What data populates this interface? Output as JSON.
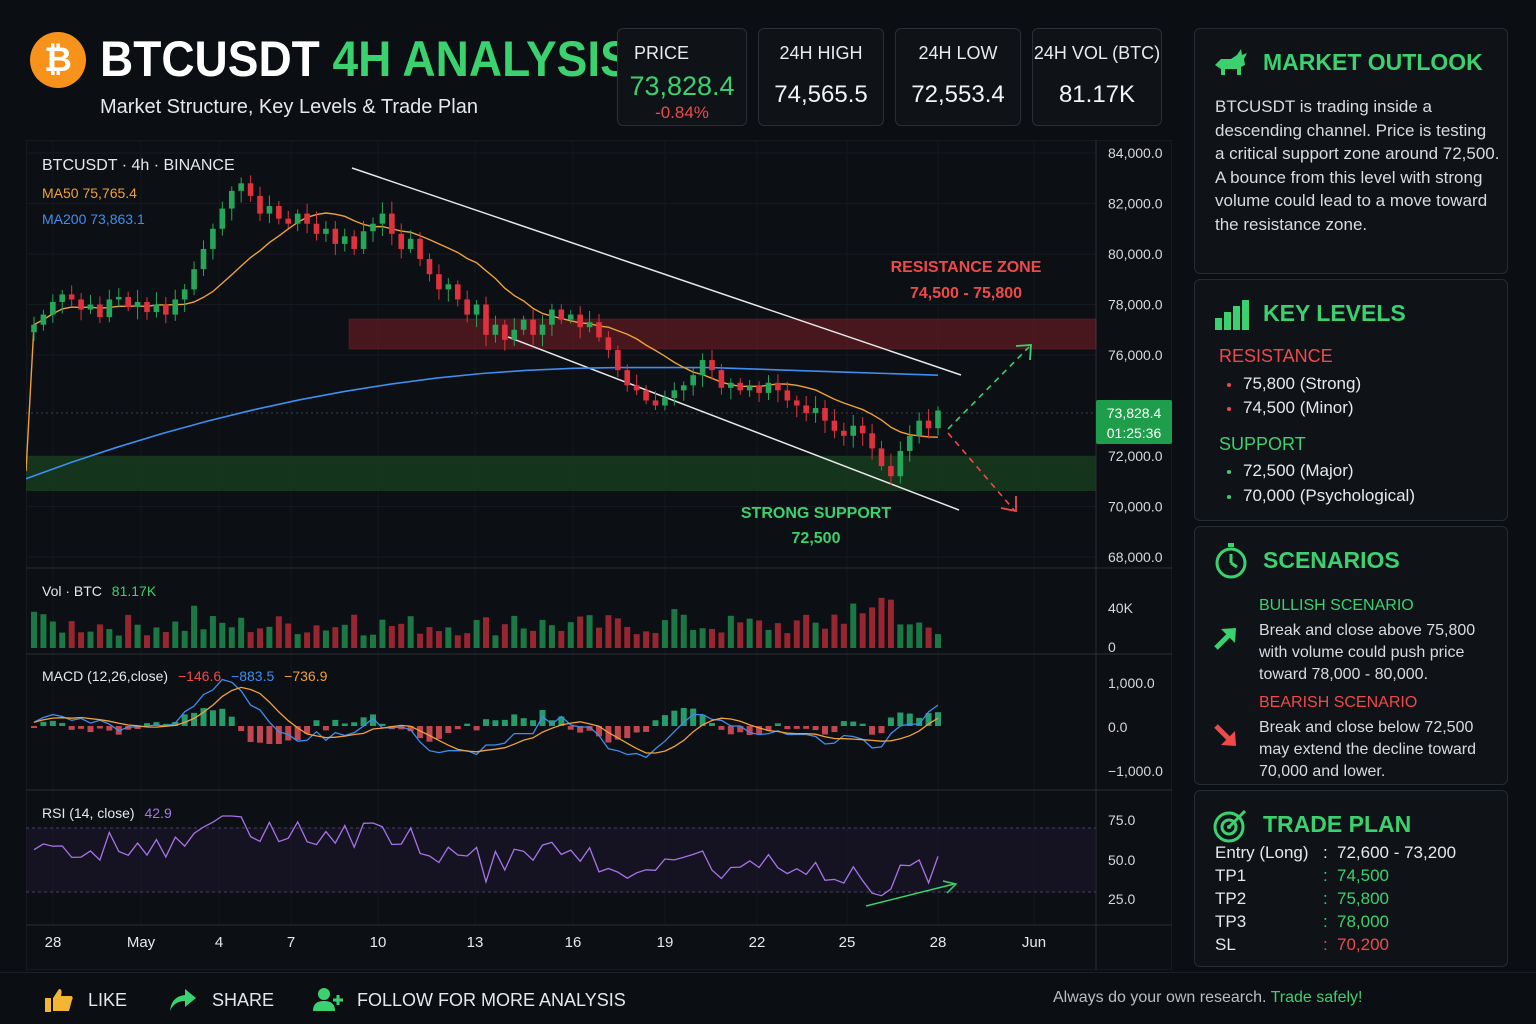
{
  "header": {
    "logo_symbol": "₿",
    "title_main": "BTCUSDT",
    "title_accent": "4H ANALYSIS",
    "subtitle": "Market Structure, Key Levels & Trade Plan"
  },
  "stats": {
    "price": {
      "label": "PRICE",
      "value": "73,828.4",
      "change": "-0.84%"
    },
    "high": {
      "label": "24H HIGH",
      "value": "74,565.5"
    },
    "low": {
      "label": "24H LOW",
      "value": "72,553.4"
    },
    "vol": {
      "label": "24H VOL (BTC)",
      "value": "81.17K"
    }
  },
  "chart_data": {
    "type": "candlestick",
    "symbol_label": "BTCUSDT · 4h · BINANCE",
    "ma50": {
      "label": "MA50",
      "value": "75,765.4",
      "color": "#f0a13a"
    },
    "ma200": {
      "label": "MA200",
      "value": "73,863.1",
      "color": "#3f8ef0"
    },
    "price_axis": {
      "ticks": [
        "84,000.0",
        "82,000.0",
        "80,000.0",
        "78,000.0",
        "76,000.0",
        "72,000.0",
        "70,000.0",
        "68,000.0"
      ],
      "ylim": [
        68000,
        84000
      ]
    },
    "x_ticks": [
      "28",
      "May",
      "4",
      "7",
      "10",
      "13",
      "16",
      "19",
      "22",
      "25",
      "28",
      "Jun"
    ],
    "current_price_tag": {
      "price": "73,828.4",
      "countdown": "01:25:36"
    },
    "resistance_zone": {
      "label": "RESISTANCE ZONE",
      "range": "74,500 - 75,800",
      "low": 74500,
      "high": 75800
    },
    "support_zone": {
      "label": "STRONG SUPPORT",
      "value": "72,500",
      "low": 71800,
      "high": 73200
    },
    "close_path": [
      77200,
      77600,
      78100,
      78400,
      78200,
      77800,
      78000,
      77500,
      78200,
      78300,
      77900,
      78100,
      77700,
      78000,
      77600,
      78200,
      78600,
      79400,
      80200,
      81000,
      81800,
      82500,
      82800,
      82300,
      81600,
      81900,
      81400,
      81200,
      81600,
      81200,
      80800,
      81000,
      80400,
      80700,
      80200,
      80900,
      81200,
      81600,
      80800,
      80200,
      80600,
      79800,
      79200,
      78600,
      78800,
      78200,
      77600,
      78000,
      76800,
      77200,
      76600,
      77000,
      77400,
      76800,
      77200,
      77800,
      77400,
      77600,
      77100,
      77300,
      76700,
      76200,
      75400,
      74800,
      74600,
      74200,
      74000,
      74300,
      74600,
      74800,
      75200,
      75800,
      75400,
      74700,
      74900,
      74600,
      74800,
      74500,
      74900,
      74600,
      74200,
      74000,
      73700,
      73900,
      73400,
      73000,
      72800,
      73200,
      72900,
      72300,
      71600,
      71200,
      72200,
      72800,
      73400,
      73100,
      73800
    ],
    "volume": {
      "label": "Vol · BTC",
      "value": "81.17K",
      "ticks": [
        "40K",
        "0"
      ]
    },
    "macd": {
      "label": "MACD (12,26,close)",
      "v1": "−146.6",
      "v2": "−883.5",
      "v3": "−736.9",
      "ticks": [
        "1,000.0",
        "0.0",
        "−1,000.0"
      ]
    },
    "rsi": {
      "label": "RSI (14, close)",
      "value": "42.9",
      "ticks": [
        "75.0",
        "50.0",
        "25.0"
      ]
    }
  },
  "outlook": {
    "title": "MARKET OUTLOOK",
    "text": "BTCUSDT is trading inside a descending channel. Price is testing a critical support zone around 72,500. A bounce from this level with strong volume could lead to a move toward the resistance zone."
  },
  "levels": {
    "title": "KEY LEVELS",
    "resistance_label": "RESISTANCE",
    "resistance": [
      "75,800 (Strong)",
      "74,500 (Minor)"
    ],
    "support_label": "SUPPORT",
    "support": [
      "72,500 (Major)",
      "70,000 (Psychological)"
    ]
  },
  "scenarios": {
    "title": "SCENARIOS",
    "bull_title": "BULLISH SCENARIO",
    "bull_text": "Break and close above 75,800 with volume could push price toward 78,000 - 80,000.",
    "bear_title": "BEARISH SCENARIO",
    "bear_text": "Break and close below 72,500 may extend the decline toward 70,000 and lower."
  },
  "trade_plan": {
    "title": "TRADE PLAN",
    "rows": [
      {
        "key": "Entry (Long)",
        "value": "72,600 - 73,200",
        "color": "#e6e8ea"
      },
      {
        "key": "TP1",
        "value": "74,500",
        "color": "#3bd16f"
      },
      {
        "key": "TP2",
        "value": "75,800",
        "color": "#3bd16f"
      },
      {
        "key": "TP3",
        "value": "78,000",
        "color": "#3bd16f"
      },
      {
        "key": "SL",
        "value": "70,200",
        "color": "#ef4a4a"
      }
    ]
  },
  "footer": {
    "like": "LIKE",
    "share": "SHARE",
    "follow": "FOLLOW FOR MORE ANALYSIS",
    "disclaimer": "Always do your own research.",
    "disclaimer_accent": "Trade safely!"
  }
}
